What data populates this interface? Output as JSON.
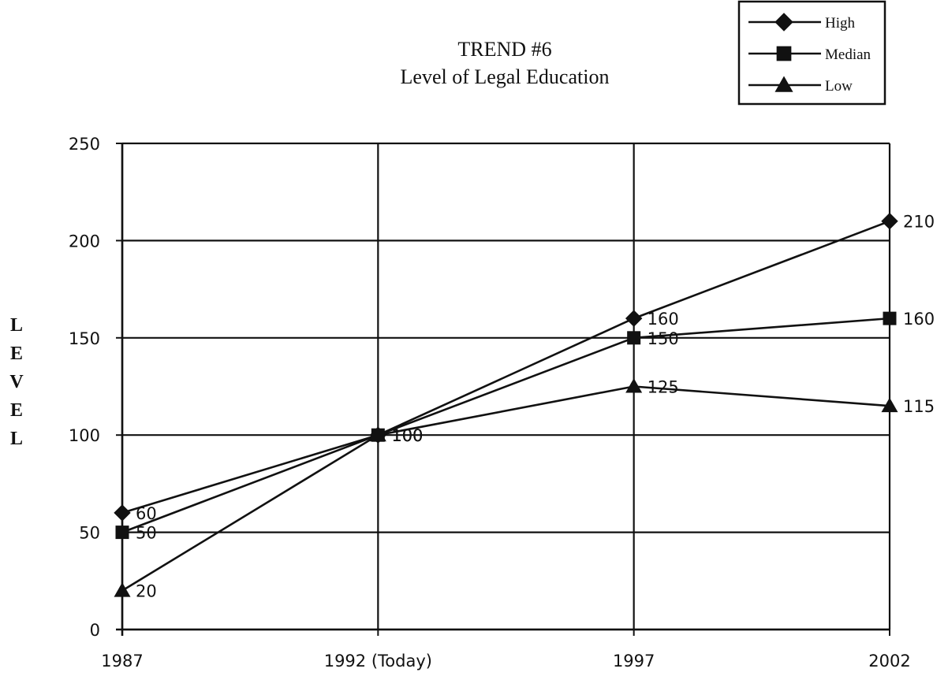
{
  "chart_data": {
    "type": "line",
    "title": "TREND #6",
    "subtitle": "Level of Legal Education",
    "ylabel": "LEVEL",
    "xlabel": "",
    "categories": [
      "1987",
      "1992 (Today)",
      "1997",
      "2002"
    ],
    "ylim": [
      0,
      250
    ],
    "yticks": [
      0,
      50,
      100,
      150,
      200,
      250
    ],
    "grid": true,
    "legend_position": "top-right",
    "series": [
      {
        "name": "High",
        "marker": "diamond",
        "values": [
          60,
          100,
          160,
          210
        ],
        "labels": [
          "60",
          "100",
          "160",
          "210"
        ]
      },
      {
        "name": "Median",
        "marker": "square",
        "values": [
          50,
          100,
          150,
          160
        ],
        "labels": [
          "50",
          "100",
          "150",
          "160"
        ]
      },
      {
        "name": "Low",
        "marker": "triangle",
        "values": [
          20,
          100,
          125,
          115
        ],
        "labels": [
          "20",
          "100",
          "125",
          "115"
        ]
      }
    ],
    "colors": {
      "line": "#111111",
      "grid": "#111111",
      "background": "#ffffff"
    }
  }
}
